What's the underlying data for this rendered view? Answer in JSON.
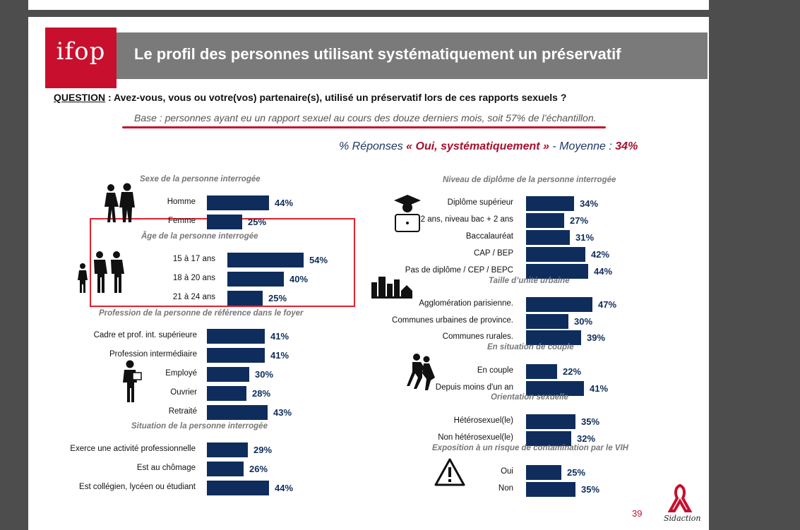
{
  "header": {
    "logo_text": "ifop",
    "title": "Le profil des personnes utilisant systématiquement un préservatif"
  },
  "question": {
    "label": "QUESTION",
    "text": " : Avez-vous, vous ou votre(vos) partenaire(s), utilisé un préservatif lors de ces rapports sexuels ?",
    "base": "Base : personnes ayant eu un rapport sexuel au cours des douze derniers mois, soit 57% de l’échantillon."
  },
  "summary": {
    "prefix": "% Réponses ",
    "highlight": "« Oui, systématiquement »",
    "middle": " - Moyenne : ",
    "average": "34%"
  },
  "footer": {
    "page_number": "39",
    "brand": "Sidaction"
  },
  "colors": {
    "bar": "#0f2d5c",
    "accent": "#c8102e",
    "header": "#7a7a7a"
  },
  "chart_data": {
    "type": "bar",
    "unit": "%",
    "groups": [
      {
        "title": "Sexe de la personne interrogée",
        "categories": [
          "Homme",
          "Femme"
        ],
        "values": [
          44,
          25
        ]
      },
      {
        "title": "Âge de la personne interrogée",
        "categories": [
          "15 à 17 ans",
          "18 à 20 ans",
          "21 à 24 ans"
        ],
        "values": [
          54,
          40,
          25
        ]
      },
      {
        "title": "Profession de la personne de référence dans le foyer",
        "categories": [
          "Cadre et prof. int. supérieure",
          "Profession intermédiaire",
          "Employé",
          "Ouvrier",
          "Retraité"
        ],
        "values": [
          41,
          41,
          30,
          28,
          43
        ]
      },
      {
        "title": "Situation de la personne interrogée",
        "categories": [
          "Exerce une activité professionnelle",
          "Est au chômage",
          "Est collégien, lycéen ou étudiant"
        ],
        "values": [
          29,
          26,
          44
        ]
      },
      {
        "title": "Niveau de diplôme de la personne interrogée",
        "categories": [
          "Diplôme supérieur",
          "2 ans, niveau bac + 2 ans",
          "Baccalauréat",
          "CAP / BEP",
          "Pas de diplôme / CEP / BEPC"
        ],
        "values": [
          34,
          27,
          31,
          42,
          44
        ]
      },
      {
        "title": "Taille d’unité urbaine",
        "categories": [
          "Agglomération parisienne.",
          "Communes urbaines de province.",
          "Communes rurales."
        ],
        "values": [
          47,
          30,
          39
        ]
      },
      {
        "title": "En situation de couple",
        "categories": [
          "En couple",
          "Depuis moins d'un an"
        ],
        "values": [
          22,
          41
        ]
      },
      {
        "title": "Orientation sexuelle",
        "categories": [
          "Hétérosexuel(le)",
          "Non hétérosexuel(le)"
        ],
        "values": [
          35,
          32
        ]
      },
      {
        "title": "Exposition à un risque de contamination par le VIH",
        "categories": [
          "Oui",
          "Non"
        ],
        "values": [
          25,
          35
        ]
      }
    ]
  }
}
